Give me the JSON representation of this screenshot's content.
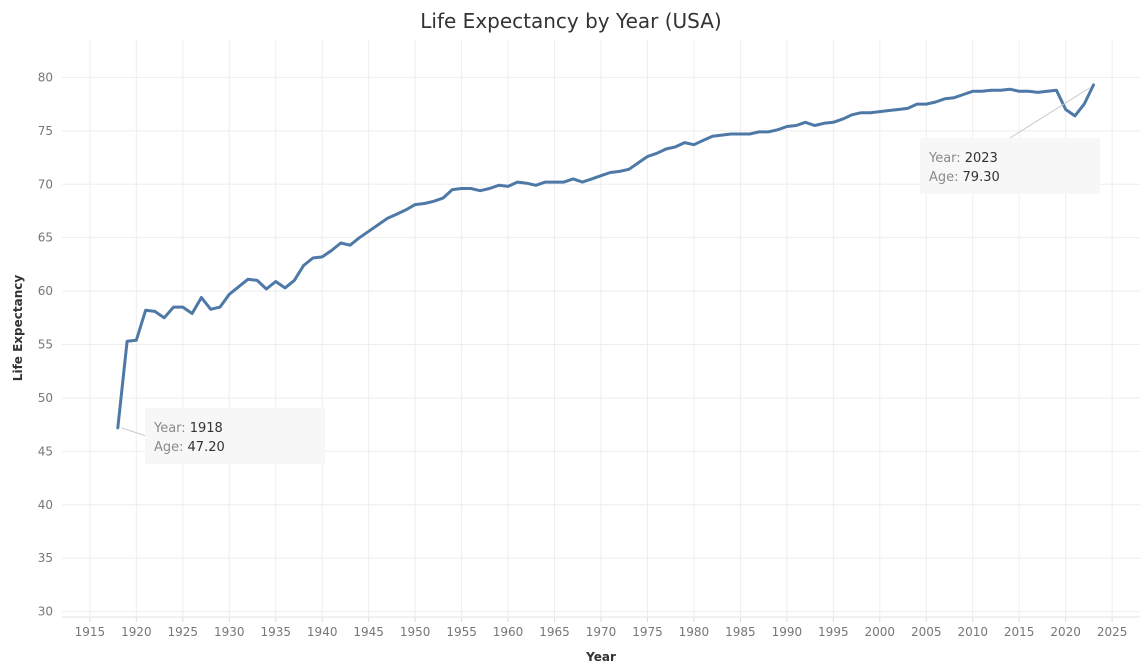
{
  "chart_data": {
    "type": "line",
    "title": "Life Expectancy by Year (USA)",
    "xlabel": "Year",
    "ylabel": "Life Expectancy",
    "xlim": [
      1912,
      2028
    ],
    "ylim": [
      29.5,
      83.5
    ],
    "xticks": [
      1915,
      1920,
      1925,
      1930,
      1935,
      1940,
      1945,
      1950,
      1955,
      1960,
      1965,
      1970,
      1975,
      1980,
      1985,
      1990,
      1995,
      2000,
      2005,
      2010,
      2015,
      2020,
      2025
    ],
    "yticks": [
      30,
      35,
      40,
      45,
      50,
      55,
      60,
      65,
      70,
      75,
      80
    ],
    "grid": true,
    "series": [
      {
        "color": "#4e79a7",
        "x": [
          1918,
          1919,
          1920,
          1921,
          1922,
          1923,
          1924,
          1925,
          1926,
          1927,
          1928,
          1929,
          1930,
          1931,
          1932,
          1933,
          1934,
          1935,
          1936,
          1937,
          1938,
          1939,
          1940,
          1941,
          1942,
          1943,
          1944,
          1945,
          1946,
          1947,
          1948,
          1949,
          1950,
          1951,
          1952,
          1953,
          1954,
          1955,
          1956,
          1957,
          1958,
          1959,
          1960,
          1961,
          1962,
          1963,
          1964,
          1965,
          1966,
          1967,
          1968,
          1969,
          1970,
          1971,
          1972,
          1973,
          1974,
          1975,
          1976,
          1977,
          1978,
          1979,
          1980,
          1981,
          1982,
          1983,
          1984,
          1985,
          1986,
          1987,
          1988,
          1989,
          1990,
          1991,
          1992,
          1993,
          1994,
          1995,
          1996,
          1997,
          1998,
          1999,
          2000,
          2001,
          2002,
          2003,
          2004,
          2005,
          2006,
          2007,
          2008,
          2009,
          2010,
          2011,
          2012,
          2013,
          2014,
          2015,
          2016,
          2017,
          2018,
          2019,
          2020,
          2021,
          2022,
          2023
        ],
        "y": [
          47.2,
          55.3,
          55.4,
          58.2,
          58.1,
          57.5,
          58.5,
          58.5,
          57.9,
          59.4,
          58.3,
          58.5,
          59.7,
          60.4,
          61.1,
          61.0,
          60.2,
          60.9,
          60.3,
          61.0,
          62.4,
          63.1,
          63.2,
          63.8,
          64.5,
          64.3,
          65.0,
          65.6,
          66.2,
          66.8,
          67.2,
          67.6,
          68.1,
          68.2,
          68.4,
          68.7,
          69.5,
          69.6,
          69.6,
          69.4,
          69.6,
          69.9,
          69.8,
          70.2,
          70.1,
          69.9,
          70.2,
          70.2,
          70.2,
          70.5,
          70.2,
          70.5,
          70.8,
          71.1,
          71.2,
          71.4,
          72.0,
          72.6,
          72.9,
          73.3,
          73.5,
          73.9,
          73.7,
          74.1,
          74.5,
          74.6,
          74.7,
          74.7,
          74.7,
          74.9,
          74.9,
          75.1,
          75.4,
          75.5,
          75.8,
          75.5,
          75.7,
          75.8,
          76.1,
          76.5,
          76.7,
          76.7,
          76.8,
          76.9,
          77.0,
          77.1,
          77.5,
          77.5,
          77.7,
          78.0,
          78.1,
          78.4,
          78.7,
          78.7,
          78.8,
          78.8,
          78.9,
          78.7,
          78.7,
          78.6,
          78.7,
          78.8,
          77.0,
          76.4,
          77.5,
          79.3
        ]
      }
    ],
    "annotations": [
      {
        "year_key": "Year:",
        "year_value": "1918",
        "age_key": "Age:",
        "age_value": "47.20",
        "point": [
          1918,
          47.2
        ]
      },
      {
        "year_key": "Year:",
        "year_value": "2023",
        "age_key": "Age:",
        "age_value": "79.30",
        "point": [
          2023,
          79.3
        ]
      }
    ]
  }
}
